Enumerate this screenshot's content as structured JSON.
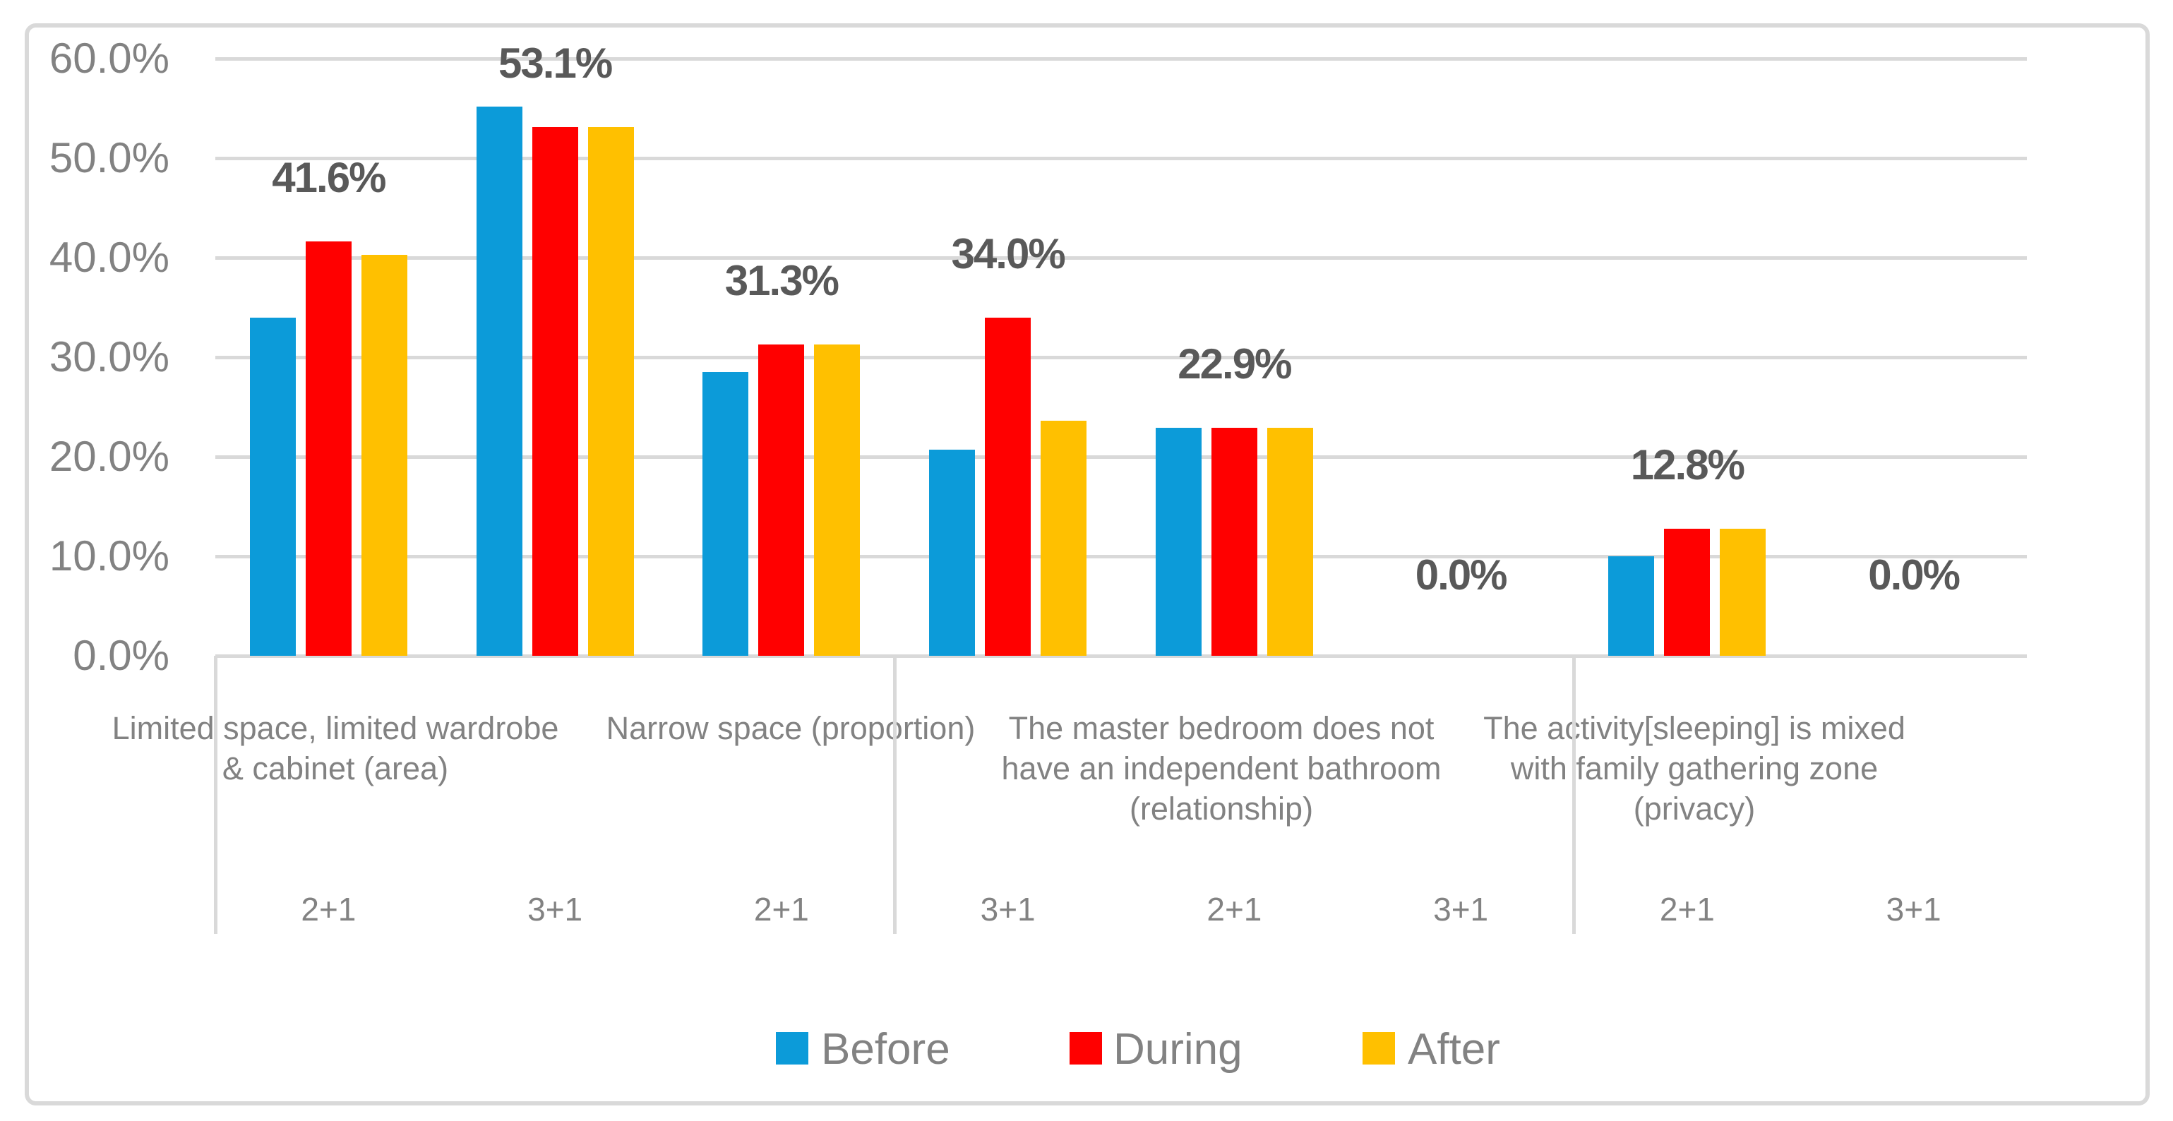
{
  "figure": {
    "background": "#FFFFFF",
    "border_color": "#D9D9D9"
  },
  "chart_data": {
    "type": "bar",
    "title": "",
    "xlabel": "",
    "ylabel": "",
    "ylim": [
      0,
      60
    ],
    "grid": true,
    "legend_position": "bottom",
    "y_ticks": [
      "60.0%",
      "50.0%",
      "40.0%",
      "30.0%",
      "20.0%",
      "10.0%",
      "0.0%"
    ],
    "slot_sublabels": [
      "2+1",
      "3+1",
      "2+1",
      "3+1",
      "2+1",
      "3+1",
      "2+1",
      "3+1"
    ],
    "data_labels": [
      "41.6%",
      "53.1%",
      "31.3%",
      "34.0%",
      "22.9%",
      "0.0%",
      "12.8%",
      "0.0%"
    ],
    "categories": [
      {
        "lines": [
          "Limited space, limited wardrobe",
          "& cabinet (area)"
        ]
      },
      {
        "lines": [
          "Narrow space (proportion)"
        ]
      },
      {
        "lines": [
          "The master bedroom does not",
          "have an independent bathroom",
          "(relationship)"
        ]
      },
      {
        "lines": [
          "The activity[sleeping] is mixed",
          "with family gathering zone",
          "(privacy)"
        ]
      }
    ],
    "series": [
      {
        "name": "Before",
        "color": "#0C9BD9",
        "values": [
          34.0,
          55.2,
          28.5,
          20.7,
          22.9,
          0.0,
          10.0,
          0.0
        ]
      },
      {
        "name": "During",
        "color": "#FF0000",
        "values": [
          41.6,
          53.1,
          31.3,
          34.0,
          22.9,
          0.0,
          12.8,
          0.0
        ]
      },
      {
        "name": "After",
        "color": "#FFC000",
        "values": [
          40.3,
          53.1,
          31.3,
          23.6,
          22.9,
          0.0,
          12.8,
          0.0
        ]
      }
    ],
    "colors": {
      "grid": "#D9D9D9",
      "axis_text": "#828282",
      "data_label_text": "#595959",
      "before": "#0C9BD9",
      "during": "#FF0000",
      "after": "#FFC000"
    }
  }
}
